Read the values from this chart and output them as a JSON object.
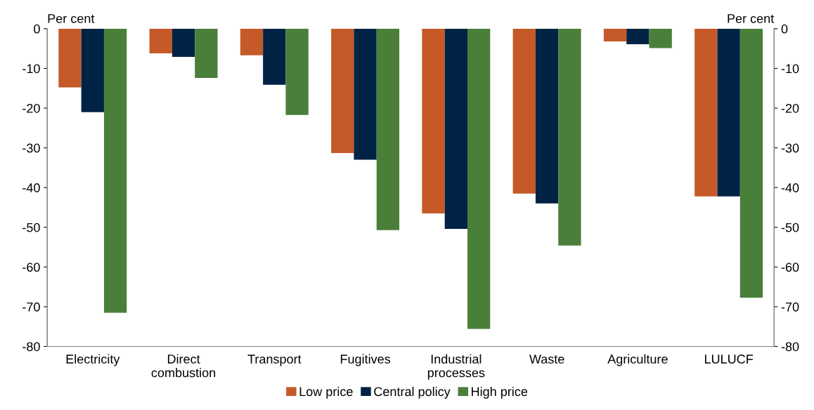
{
  "chart_data": {
    "type": "bar",
    "ylabel": "Per cent",
    "y2label": "Per cent",
    "categories": [
      "Electricity",
      "Direct\ncombustion",
      "Transport",
      "Fugitives",
      "Industrial\nprocesses",
      "Waste",
      "Agriculture",
      "LULUCF"
    ],
    "series": [
      {
        "name": "Low price",
        "color": "#c55a28",
        "values": [
          -14.8,
          -6.2,
          -6.7,
          -31.3,
          -46.5,
          -41.5,
          -3.2,
          -42.2
        ]
      },
      {
        "name": "Central policy",
        "color": "#002244",
        "values": [
          -21.0,
          -7.1,
          -14.1,
          -33.0,
          -50.4,
          -44.0,
          -3.9,
          -42.2
        ]
      },
      {
        "name": "High price",
        "color": "#4a7f3a",
        "values": [
          -71.5,
          -12.4,
          -21.7,
          -50.7,
          -75.6,
          -54.6,
          -4.9,
          -67.7
        ]
      }
    ],
    "ylim": [
      -80,
      0
    ],
    "yticks": [
      -80,
      -70,
      -60,
      -50,
      -40,
      -30,
      -20,
      -10,
      0
    ],
    "y2lim": [
      -80,
      0
    ],
    "y2ticks": [
      -80,
      -70,
      -60,
      -50,
      -40,
      -30,
      -20,
      -10,
      0
    ],
    "grid": false,
    "legend": "bottom"
  }
}
